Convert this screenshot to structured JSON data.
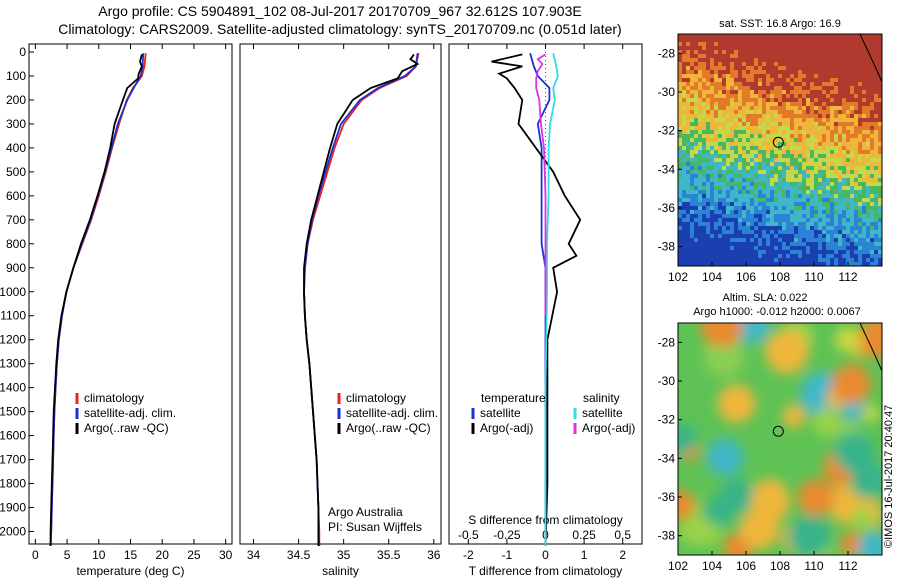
{
  "header": {
    "line1": "Argo profile: CS 5904891_102 08-Jul-2017 20170709_967 32.612S 107.903E",
    "line2": "Climatology: CARS2009. Satellite-adjusted climatology: synTS_20170709.nc (0.051d later)"
  },
  "colors": {
    "climatology": "#e8221f",
    "satellite_clim": "#1d2fd6",
    "argo": "#000000",
    "sal_satellite": "#33dde0",
    "sal_argo": "#e030e0"
  },
  "chart_data": [
    {
      "type": "line",
      "id": "temperature-panel",
      "xlabel": "temperature (deg C)",
      "xticks": [
        0,
        5,
        10,
        15,
        20,
        25,
        30
      ],
      "xlim": [
        -1,
        31
      ],
      "ylim": [
        2070,
        0
      ],
      "yticks": [
        0,
        100,
        200,
        300,
        400,
        500,
        600,
        700,
        800,
        900,
        1000,
        1100,
        1200,
        1300,
        1400,
        1500,
        1600,
        1700,
        1800,
        1900,
        2000
      ],
      "legend": [
        "climatology",
        "satellite-adj. clim.",
        "Argo(..raw -QC)"
      ],
      "series": [
        {
          "name": "climatology",
          "color": "#e8221f",
          "points": [
            [
              17.4,
              5
            ],
            [
              17.2,
              60
            ],
            [
              16.8,
              100
            ],
            [
              15.4,
              150
            ],
            [
              14.4,
              200
            ],
            [
              13.2,
              300
            ],
            [
              12.1,
              400
            ],
            [
              11.1,
              500
            ],
            [
              10.0,
              600
            ],
            [
              8.8,
              700
            ],
            [
              7.4,
              800
            ],
            [
              6.0,
              900
            ],
            [
              4.9,
              1000
            ],
            [
              4.2,
              1100
            ],
            [
              3.7,
              1200
            ],
            [
              3.4,
              1300
            ],
            [
              3.2,
              1400
            ],
            [
              3.0,
              1500
            ],
            [
              2.9,
              1600
            ],
            [
              2.8,
              1700
            ],
            [
              2.7,
              1800
            ],
            [
              2.6,
              1900
            ],
            [
              2.5,
              2000
            ],
            [
              2.4,
              2060
            ]
          ]
        },
        {
          "name": "satellite-adj. clim.",
          "color": "#1d2fd6",
          "points": [
            [
              17.0,
              5
            ],
            [
              16.9,
              60
            ],
            [
              16.6,
              100
            ],
            [
              15.5,
              150
            ],
            [
              14.5,
              200
            ],
            [
              13.0,
              300
            ],
            [
              12.0,
              400
            ],
            [
              11.0,
              500
            ],
            [
              9.9,
              600
            ],
            [
              8.7,
              700
            ],
            [
              7.3,
              800
            ],
            [
              6.0,
              900
            ],
            [
              4.9,
              1000
            ],
            [
              4.2,
              1100
            ],
            [
              3.7,
              1200
            ],
            [
              3.4,
              1300
            ],
            [
              3.2,
              1400
            ],
            [
              3.0,
              1500
            ],
            [
              2.9,
              1600
            ],
            [
              2.8,
              1700
            ],
            [
              2.7,
              1800
            ],
            [
              2.6,
              1900
            ],
            [
              2.5,
              2000
            ],
            [
              2.4,
              2060
            ]
          ]
        },
        {
          "name": "Argo(..raw -QC)",
          "color": "#000000",
          "points": [
            [
              16.8,
              10
            ],
            [
              16.5,
              40
            ],
            [
              16.8,
              60
            ],
            [
              16.3,
              90
            ],
            [
              16.2,
              110
            ],
            [
              14.5,
              150
            ],
            [
              13.8,
              200
            ],
            [
              12.5,
              300
            ],
            [
              11.8,
              400
            ],
            [
              10.9,
              500
            ],
            [
              9.8,
              600
            ],
            [
              8.6,
              700
            ],
            [
              7.2,
              800
            ],
            [
              6.0,
              900
            ],
            [
              4.9,
              1000
            ],
            [
              4.1,
              1100
            ],
            [
              3.6,
              1200
            ],
            [
              3.3,
              1300
            ],
            [
              3.1,
              1400
            ],
            [
              2.9,
              1500
            ],
            [
              2.8,
              1600
            ],
            [
              2.7,
              1700
            ],
            [
              2.6,
              1800
            ],
            [
              2.5,
              1900
            ],
            [
              2.4,
              2000
            ],
            [
              2.4,
              2060
            ]
          ]
        }
      ]
    },
    {
      "type": "line",
      "id": "salinity-panel",
      "xlabel": "salinity",
      "xticks": [
        34,
        34.5,
        35,
        35.5,
        36
      ],
      "xlim": [
        33.85,
        36.08
      ],
      "ylim": [
        2070,
        0
      ],
      "legend": [
        "climatology",
        "satellite-adj. clim.",
        "Argo(..raw -QC)"
      ],
      "annotation": [
        "Argo Australia",
        "PI: Susan Wijffels"
      ],
      "series": [
        {
          "name": "climatology",
          "color": "#e8221f",
          "points": [
            [
              35.83,
              5
            ],
            [
              35.8,
              60
            ],
            [
              35.7,
              100
            ],
            [
              35.4,
              150
            ],
            [
              35.2,
              200
            ],
            [
              35.0,
              300
            ],
            [
              34.9,
              400
            ],
            [
              34.82,
              500
            ],
            [
              34.74,
              600
            ],
            [
              34.66,
              700
            ],
            [
              34.6,
              800
            ],
            [
              34.57,
              900
            ],
            [
              34.56,
              1000
            ],
            [
              34.57,
              1100
            ],
            [
              34.59,
              1200
            ],
            [
              34.62,
              1300
            ],
            [
              34.64,
              1400
            ],
            [
              34.66,
              1500
            ],
            [
              34.68,
              1600
            ],
            [
              34.7,
              1700
            ],
            [
              34.71,
              1800
            ],
            [
              34.72,
              1900
            ],
            [
              34.73,
              2000
            ],
            [
              34.73,
              2060
            ]
          ]
        },
        {
          "name": "satellite-adj. clim.",
          "color": "#1d2fd6",
          "points": [
            [
              35.82,
              5
            ],
            [
              35.8,
              60
            ],
            [
              35.68,
              100
            ],
            [
              35.38,
              150
            ],
            [
              35.18,
              200
            ],
            [
              34.97,
              300
            ],
            [
              34.88,
              400
            ],
            [
              34.8,
              500
            ],
            [
              34.72,
              600
            ],
            [
              34.65,
              700
            ],
            [
              34.6,
              800
            ],
            [
              34.57,
              900
            ],
            [
              34.56,
              1000
            ],
            [
              34.57,
              1100
            ],
            [
              34.59,
              1200
            ],
            [
              34.62,
              1300
            ],
            [
              34.64,
              1400
            ],
            [
              34.66,
              1500
            ],
            [
              34.68,
              1600
            ],
            [
              34.7,
              1700
            ],
            [
              34.71,
              1800
            ],
            [
              34.72,
              1900
            ],
            [
              34.72,
              2000
            ],
            [
              34.73,
              2060
            ]
          ]
        },
        {
          "name": "Argo(..raw -QC)",
          "color": "#000000",
          "points": [
            [
              35.78,
              10
            ],
            [
              35.74,
              30
            ],
            [
              35.82,
              50
            ],
            [
              35.65,
              80
            ],
            [
              35.6,
              110
            ],
            [
              35.3,
              150
            ],
            [
              35.1,
              200
            ],
            [
              34.93,
              300
            ],
            [
              34.85,
              400
            ],
            [
              34.78,
              500
            ],
            [
              34.71,
              600
            ],
            [
              34.64,
              700
            ],
            [
              34.59,
              800
            ],
            [
              34.56,
              900
            ],
            [
              34.56,
              1000
            ],
            [
              34.57,
              1100
            ],
            [
              34.59,
              1200
            ],
            [
              34.62,
              1300
            ],
            [
              34.64,
              1400
            ],
            [
              34.66,
              1500
            ],
            [
              34.68,
              1600
            ],
            [
              34.7,
              1700
            ],
            [
              34.71,
              1800
            ],
            [
              34.72,
              1900
            ],
            [
              34.72,
              2000
            ],
            [
              34.72,
              2060
            ]
          ]
        }
      ]
    },
    {
      "type": "line",
      "id": "difference-panel",
      "xlabel": "T difference from climatology",
      "xlabel_top": "S difference from climatology",
      "xticks": [
        -2,
        -1,
        0,
        1,
        2
      ],
      "xlim": [
        -2.5,
        2.5
      ],
      "sticks": [
        -0.5,
        -0.25,
        0,
        0.25,
        0.5
      ],
      "sticks_xlim": [
        -0.625,
        0.625
      ],
      "ylim": [
        2070,
        0
      ],
      "legend_temperature_title": "temperature",
      "legend_salinity_title": "salinity",
      "legend_temperature": [
        "satellite",
        "Argo(-adj)"
      ],
      "legend_salinity": [
        "satellite",
        "Argo(-adj)"
      ],
      "series": [
        {
          "name": "satellite",
          "group": "temperature",
          "color": "#1d2fd6",
          "points": [
            [
              -0.4,
              5
            ],
            [
              -0.3,
              60
            ],
            [
              -0.2,
              100
            ],
            [
              0.1,
              150
            ],
            [
              0.1,
              200
            ],
            [
              -0.2,
              300
            ],
            [
              -0.1,
              400
            ],
            [
              -0.1,
              500
            ],
            [
              -0.1,
              600
            ],
            [
              -0.1,
              700
            ],
            [
              -0.1,
              800
            ],
            [
              0,
              900
            ],
            [
              0,
              1000
            ],
            [
              0,
              1200
            ],
            [
              0,
              1500
            ],
            [
              0,
              1800
            ],
            [
              0,
              2060
            ]
          ]
        },
        {
          "name": "Argo(-adj)",
          "group": "temperature",
          "color": "#000000",
          "points": [
            [
              -0.6,
              10
            ],
            [
              -1.4,
              40
            ],
            [
              -0.6,
              60
            ],
            [
              -1.2,
              90
            ],
            [
              -1.0,
              110
            ],
            [
              -0.8,
              150
            ],
            [
              -0.6,
              200
            ],
            [
              -0.7,
              300
            ],
            [
              0.2,
              500
            ],
            [
              0.5,
              600
            ],
            [
              0.9,
              700
            ],
            [
              0.6,
              800
            ],
            [
              0.8,
              850
            ],
            [
              0.2,
              900
            ],
            [
              0.3,
              1000
            ],
            [
              0.05,
              1200
            ],
            [
              0.05,
              1500
            ],
            [
              0.05,
              1800
            ],
            [
              0,
              2060
            ]
          ]
        },
        {
          "name": "satellite",
          "group": "salinity",
          "color": "#33dde0",
          "points": [
            [
              0.05,
              5
            ],
            [
              0.07,
              60
            ],
            [
              0.08,
              100
            ],
            [
              0.05,
              150
            ],
            [
              0.06,
              200
            ],
            [
              0.03,
              300
            ],
            [
              0.02,
              400
            ],
            [
              0.02,
              600
            ],
            [
              0.01,
              800
            ],
            [
              0.01,
              1000
            ],
            [
              0,
              1400
            ],
            [
              0,
              2060
            ]
          ]
        },
        {
          "name": "Argo(-adj)",
          "group": "salinity",
          "color": "#e030e0",
          "points": [
            [
              0,
              10
            ],
            [
              -0.05,
              30
            ],
            [
              -0.02,
              50
            ],
            [
              -0.05,
              80
            ],
            [
              -0.06,
              110
            ],
            [
              -0.06,
              150
            ],
            [
              -0.04,
              200
            ],
            [
              -0.03,
              300
            ],
            [
              -0.01,
              400
            ],
            [
              0,
              600
            ],
            [
              0,
              800
            ],
            [
              0,
              1000
            ],
            [
              0,
              1100
            ]
          ]
        }
      ]
    },
    {
      "type": "heatmap",
      "id": "sst-map",
      "title": "sat. SST: 16.8 Argo: 16.9",
      "xticks": [
        102,
        104,
        106,
        108,
        110,
        112
      ],
      "yticks": [
        -28,
        -30,
        -32,
        -34,
        -36,
        -38
      ],
      "xlim": [
        102,
        114
      ],
      "ylim": [
        -39,
        -27
      ],
      "marker": [
        107.9,
        -32.6
      ]
    },
    {
      "type": "heatmap",
      "id": "sla-map",
      "title": "Altim. SLA: 0.022",
      "subtitle": "Argo h1000: -0.012 h2000: 0.0067",
      "xticks": [
        102,
        104,
        106,
        108,
        110,
        112
      ],
      "yticks": [
        -28,
        -30,
        -32,
        -34,
        -36,
        -38
      ],
      "xlim": [
        102,
        114
      ],
      "ylim": [
        -39,
        -27
      ],
      "marker": [
        107.9,
        -32.6
      ]
    }
  ],
  "credit": "©IMOS 16-Jul-2017 20:40:47"
}
